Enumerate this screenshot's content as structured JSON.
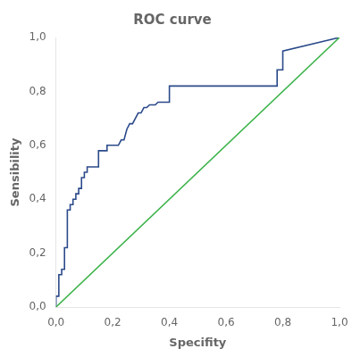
{
  "chart_data": {
    "type": "line",
    "title": "ROC curve",
    "xlabel": "Specifity",
    "ylabel": "Sensibility",
    "xlim": [
      0.0,
      1.0
    ],
    "ylim": [
      0.0,
      1.0
    ],
    "xticks": [
      {
        "value": 0.0,
        "label": "0,0"
      },
      {
        "value": 0.2,
        "label": "0,2"
      },
      {
        "value": 0.4,
        "label": "0,4"
      },
      {
        "value": 0.6,
        "label": "0,6"
      },
      {
        "value": 0.8,
        "label": "0,8"
      },
      {
        "value": 1.0,
        "label": "1,0"
      }
    ],
    "yticks": [
      {
        "value": 0.0,
        "label": "0,0"
      },
      {
        "value": 0.2,
        "label": "0,2"
      },
      {
        "value": 0.4,
        "label": "0,4"
      },
      {
        "value": 0.6,
        "label": "0,6"
      },
      {
        "value": 0.8,
        "label": "0,8"
      },
      {
        "value": 1.0,
        "label": "1,0"
      }
    ],
    "grid": false,
    "series": [
      {
        "color": "#3cb34a",
        "x": [
          0,
          1
        ],
        "values": [
          0,
          1
        ]
      },
      {
        "color": "#2b4a8a",
        "x": [
          0.0,
          0.0,
          0.01,
          0.01,
          0.02,
          0.02,
          0.03,
          0.03,
          0.04,
          0.04,
          0.05,
          0.05,
          0.06,
          0.06,
          0.07,
          0.07,
          0.08,
          0.08,
          0.09,
          0.09,
          0.1,
          0.1,
          0.11,
          0.11,
          0.12,
          0.13,
          0.14,
          0.15,
          0.15,
          0.16,
          0.17,
          0.18,
          0.18,
          0.19,
          0.2,
          0.21,
          0.22,
          0.23,
          0.24,
          0.25,
          0.26,
          0.27,
          0.28,
          0.29,
          0.3,
          0.31,
          0.32,
          0.33,
          0.35,
          0.36,
          0.37,
          0.38,
          0.4,
          0.4,
          0.41,
          0.42,
          0.43,
          0.44,
          0.45,
          0.46,
          0.47,
          0.48,
          0.5,
          0.55,
          0.6,
          0.65,
          0.7,
          0.75,
          0.78,
          0.78,
          0.8,
          0.8,
          1.0
        ],
        "values": [
          0.0,
          0.04,
          0.04,
          0.12,
          0.12,
          0.14,
          0.14,
          0.22,
          0.22,
          0.36,
          0.36,
          0.38,
          0.38,
          0.4,
          0.4,
          0.42,
          0.42,
          0.44,
          0.44,
          0.48,
          0.48,
          0.5,
          0.5,
          0.52,
          0.52,
          0.52,
          0.52,
          0.52,
          0.58,
          0.58,
          0.58,
          0.58,
          0.6,
          0.6,
          0.6,
          0.6,
          0.6,
          0.62,
          0.62,
          0.66,
          0.68,
          0.68,
          0.7,
          0.72,
          0.72,
          0.74,
          0.74,
          0.75,
          0.75,
          0.76,
          0.76,
          0.76,
          0.76,
          0.82,
          0.82,
          0.82,
          0.82,
          0.82,
          0.82,
          0.82,
          0.82,
          0.82,
          0.82,
          0.82,
          0.82,
          0.82,
          0.82,
          0.82,
          0.82,
          0.88,
          0.88,
          0.95,
          1.0
        ]
      }
    ]
  }
}
